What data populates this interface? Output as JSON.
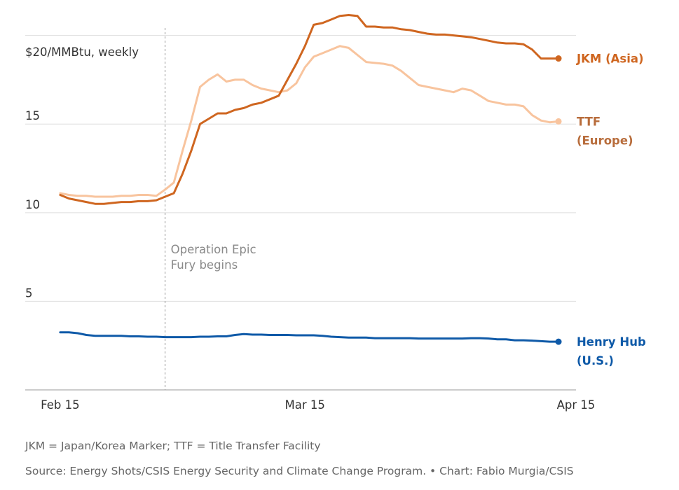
{
  "chart_data": {
    "type": "line",
    "unit_label": "$20/MMBtu, weekly",
    "y_ticks": [
      {
        "value": 5,
        "label": "5"
      },
      {
        "value": 10,
        "label": "10"
      },
      {
        "value": 15,
        "label": "15"
      },
      {
        "value": 20,
        "label": ""
      }
    ],
    "ylim": [
      0,
      22
    ],
    "x_ticks": [
      {
        "value": 0,
        "label": "Feb 15"
      },
      {
        "value": 28,
        "label": "Mar 15"
      },
      {
        "value": 59,
        "label": "Apr 15"
      }
    ],
    "xlim": [
      -4,
      59
    ],
    "annotation": {
      "x": 12,
      "lines": [
        "Operation Epic",
        "Fury begins"
      ]
    },
    "grid": true,
    "series": [
      {
        "id": "ttf",
        "name_lines": [
          "TTF",
          "(Europe)"
        ],
        "color": "#f8c49e",
        "label_color": "#b86d3c",
        "x": [
          0,
          1,
          2,
          3,
          4,
          5,
          6,
          7,
          8,
          9,
          10,
          11,
          12,
          13,
          14,
          15,
          16,
          17,
          18,
          19,
          20,
          21,
          22,
          23,
          24,
          25,
          26,
          27,
          28,
          29,
          30,
          31,
          32,
          33,
          34,
          35,
          36,
          37,
          38,
          39,
          40,
          41,
          42,
          43,
          44,
          45,
          46,
          47,
          48,
          49,
          50,
          51,
          52,
          53,
          54,
          55,
          56,
          57
        ],
        "y": [
          11.1,
          11.0,
          10.95,
          10.95,
          10.9,
          10.9,
          10.9,
          10.95,
          10.95,
          11.0,
          11.0,
          10.95,
          11.3,
          11.7,
          13.5,
          15.2,
          17.1,
          17.5,
          17.8,
          17.4,
          17.5,
          17.5,
          17.2,
          17.0,
          16.9,
          16.8,
          16.9,
          17.3,
          18.2,
          18.8,
          19.0,
          19.2,
          19.4,
          19.3,
          18.9,
          18.5,
          18.45,
          18.4,
          18.3,
          18.0,
          17.6,
          17.2,
          17.1,
          17.0,
          16.9,
          16.8,
          17.0,
          16.9,
          16.6,
          16.3,
          16.2,
          16.1,
          16.1,
          16.0,
          15.5,
          15.2,
          15.1,
          15.15
        ]
      },
      {
        "id": "jkm",
        "name_lines": [
          "JKM (Asia)"
        ],
        "color": "#cf6620",
        "label_color": "#cf6620",
        "x": [
          0,
          1,
          2,
          3,
          4,
          5,
          6,
          7,
          8,
          9,
          10,
          11,
          12,
          13,
          14,
          15,
          16,
          17,
          18,
          19,
          20,
          21,
          22,
          23,
          24,
          25,
          26,
          27,
          28,
          29,
          30,
          31,
          32,
          33,
          34,
          35,
          36,
          37,
          38,
          39,
          40,
          41,
          42,
          43,
          44,
          45,
          46,
          47,
          48,
          49,
          50,
          51,
          52,
          53,
          54,
          55,
          56,
          57
        ],
        "y": [
          11.0,
          10.8,
          10.7,
          10.6,
          10.5,
          10.5,
          10.55,
          10.6,
          10.6,
          10.65,
          10.65,
          10.7,
          10.9,
          11.1,
          12.2,
          13.5,
          15.0,
          15.3,
          15.6,
          15.6,
          15.8,
          15.9,
          16.1,
          16.2,
          16.4,
          16.6,
          17.5,
          18.4,
          19.4,
          20.6,
          20.7,
          20.9,
          21.1,
          21.15,
          21.1,
          20.5,
          20.5,
          20.45,
          20.45,
          20.35,
          20.3,
          20.2,
          20.1,
          20.05,
          20.05,
          20.0,
          19.95,
          19.9,
          19.8,
          19.7,
          19.6,
          19.55,
          19.55,
          19.5,
          19.2,
          18.7,
          18.7,
          18.7
        ]
      },
      {
        "id": "henry",
        "name_lines": [
          "Henry Hub",
          "(U.S.)"
        ],
        "color": "#0f5aa8",
        "label_color": "#0f5aa8",
        "x": [
          0,
          1,
          2,
          3,
          4,
          5,
          6,
          7,
          8,
          9,
          10,
          11,
          12,
          13,
          14,
          15,
          16,
          17,
          18,
          19,
          20,
          21,
          22,
          23,
          24,
          25,
          26,
          27,
          28,
          29,
          30,
          31,
          32,
          33,
          34,
          35,
          36,
          37,
          38,
          39,
          40,
          41,
          42,
          43,
          44,
          45,
          46,
          47,
          48,
          49,
          50,
          51,
          52,
          53,
          54,
          55,
          56,
          57
        ],
        "y": [
          3.25,
          3.25,
          3.2,
          3.1,
          3.05,
          3.05,
          3.05,
          3.05,
          3.02,
          3.02,
          3.0,
          3.0,
          2.98,
          2.98,
          2.98,
          2.98,
          3.0,
          3.0,
          3.02,
          3.02,
          3.1,
          3.15,
          3.12,
          3.12,
          3.1,
          3.1,
          3.1,
          3.08,
          3.08,
          3.08,
          3.05,
          3.0,
          2.98,
          2.95,
          2.95,
          2.95,
          2.92,
          2.92,
          2.92,
          2.92,
          2.92,
          2.9,
          2.9,
          2.9,
          2.9,
          2.9,
          2.9,
          2.92,
          2.92,
          2.9,
          2.85,
          2.85,
          2.8,
          2.8,
          2.78,
          2.75,
          2.72,
          2.72
        ]
      }
    ]
  },
  "footnotes": {
    "glossary": "JKM = Japan/Korea Marker; TTF = Title Transfer Facility",
    "source": "Source: Energy Shots/CSIS Energy Security and Climate Change Program. • Chart: Fabio Murgia/CSIS"
  }
}
